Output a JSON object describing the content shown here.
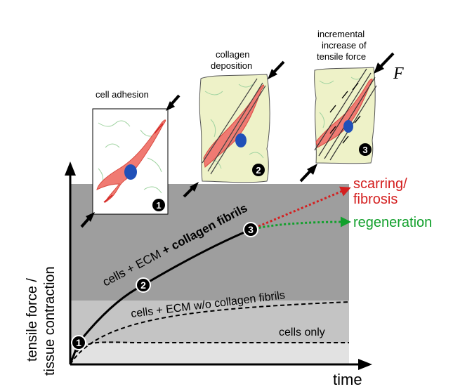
{
  "panels": {
    "p1": {
      "title": "cell adhesion",
      "number": "1"
    },
    "p2": {
      "title_line1": "collagen",
      "title_line2": "deposition",
      "number": "2"
    },
    "p3": {
      "title_line1": "incremental",
      "title_line2": "increase of",
      "title_line3": "tensile force",
      "number": "3",
      "force_symbol": "F"
    }
  },
  "axes": {
    "y_line1": "tensile force /",
    "y_line2": "tissue contraction",
    "x": "time"
  },
  "curves": {
    "main_part1": "cells + ECM ",
    "main_part2": "+ collagen fibrils",
    "ecm": "cells + ECM w/o collagen fibrils",
    "cells": "cells only"
  },
  "markers": [
    "1",
    "2",
    "3"
  ],
  "outcomes": {
    "scar_line1": "scarring/",
    "scar_line2": "fibrosis",
    "regen": "regeneration"
  },
  "colors": {
    "scar": "#d42020",
    "regen": "#12a02c",
    "band_top": "#9e9e9e",
    "band_mid": "#c4c4c4",
    "band_low": "#e2e2e2",
    "cell": "#f07a72",
    "nucleus": "#2050b8",
    "tissue": "#eef2c8"
  }
}
